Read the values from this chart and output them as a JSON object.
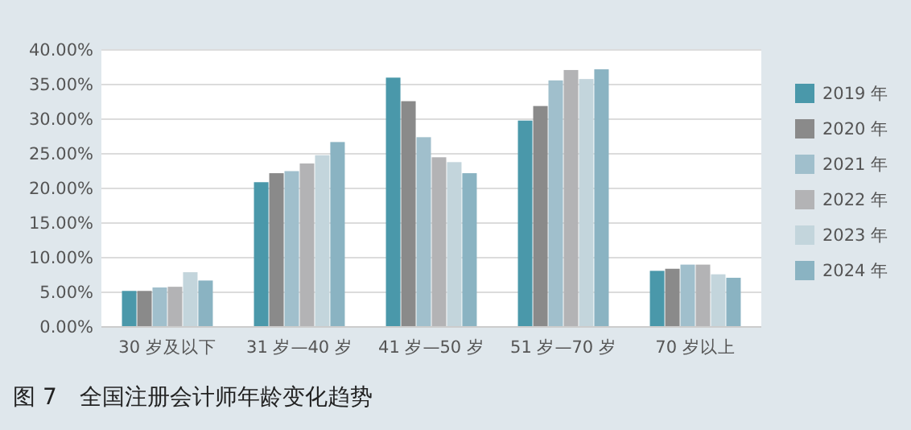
{
  "chart_data": {
    "type": "bar",
    "title": "图 7　全国注册会计师年龄变化趋势",
    "categories": [
      "30 岁及以下",
      "31 岁—40 岁",
      "41 岁—50 岁",
      "51 岁—70 岁",
      "70 岁以上"
    ],
    "series": [
      {
        "name": "2019 年",
        "color": "#4a98aa",
        "values": [
          5.2,
          20.9,
          36.0,
          29.8,
          8.1
        ]
      },
      {
        "name": "2020 年",
        "color": "#8a8a8a",
        "values": [
          5.2,
          22.2,
          32.6,
          31.9,
          8.4
        ]
      },
      {
        "name": "2021 年",
        "color": "#a0bfcc",
        "values": [
          5.7,
          22.5,
          27.4,
          35.6,
          9.0
        ]
      },
      {
        "name": "2022 年",
        "color": "#b3b3b5",
        "values": [
          5.8,
          23.6,
          24.5,
          37.1,
          9.0
        ]
      },
      {
        "name": "2023 年",
        "color": "#c3d5dc",
        "values": [
          7.9,
          24.8,
          23.8,
          35.8,
          7.6
        ]
      },
      {
        "name": "2024 年",
        "color": "#8ab3c2",
        "values": [
          6.7,
          26.7,
          22.2,
          37.2,
          7.1
        ]
      }
    ],
    "ylim": [
      0,
      40
    ],
    "yticks": [
      {
        "value": 0,
        "label": "0.00%"
      },
      {
        "value": 5,
        "label": "5.00%"
      },
      {
        "value": 10,
        "label": "10.00%"
      },
      {
        "value": 15,
        "label": "15.00%"
      },
      {
        "value": 20,
        "label": "20.00%"
      },
      {
        "value": 25,
        "label": "25.00%"
      },
      {
        "value": 30,
        "label": "30.00%"
      },
      {
        "value": 35,
        "label": "35.00%"
      },
      {
        "value": 40,
        "label": "40.00%"
      }
    ],
    "grid": "y",
    "legend": "right"
  }
}
